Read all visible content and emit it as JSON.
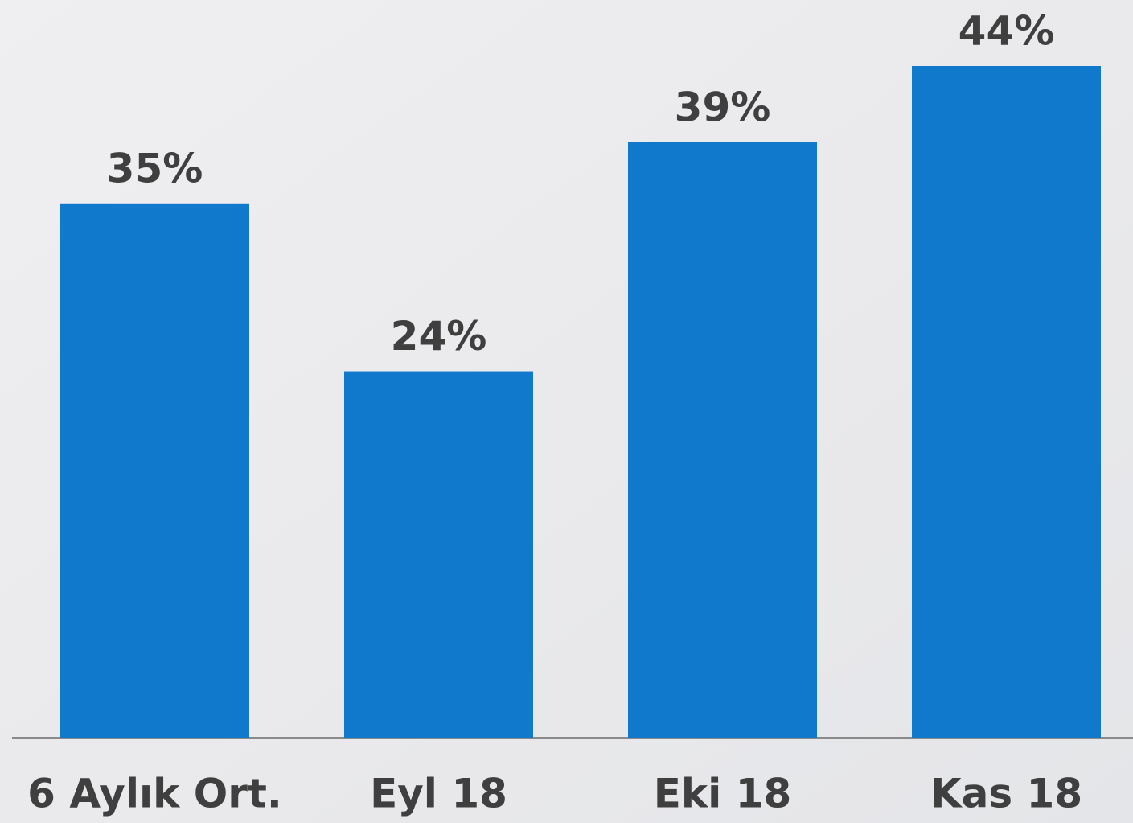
{
  "chart_data": {
    "type": "bar",
    "categories": [
      "6 Aylık Ort.",
      "Eyl 18",
      "Eki 18",
      "Kas 18"
    ],
    "values": [
      35,
      24,
      39,
      44
    ],
    "value_labels": [
      "35%",
      "24%",
      "39%",
      "44%"
    ],
    "color": "#1079cc"
  }
}
